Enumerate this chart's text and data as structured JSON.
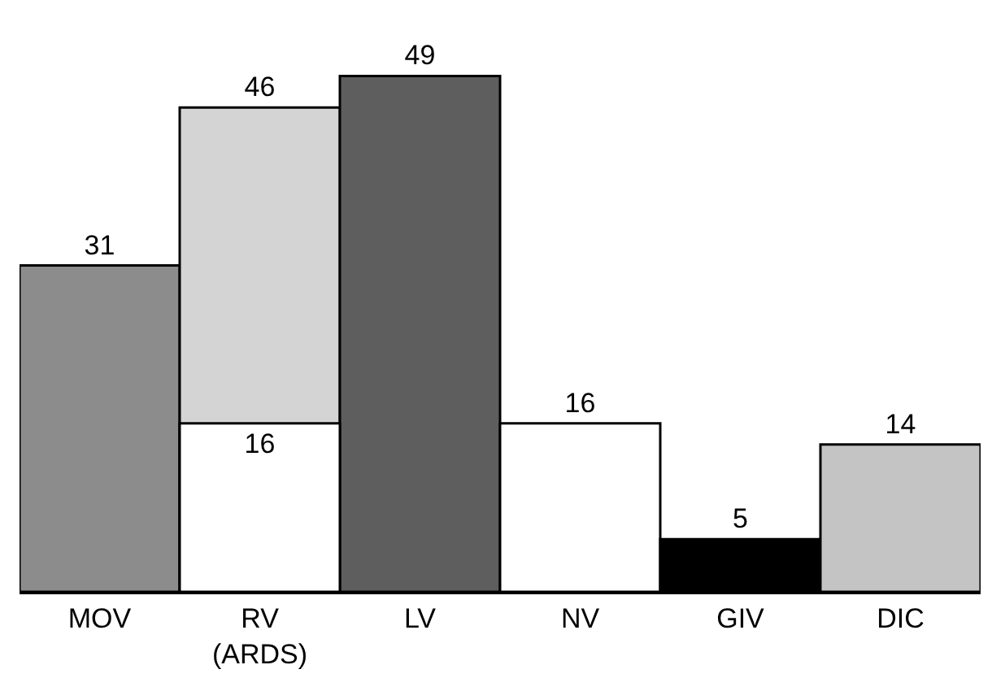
{
  "chart_data": {
    "type": "bar",
    "categories": [
      "MOV",
      "RV\n(ARDS)",
      "LV",
      "NV",
      "GIV",
      "DIC"
    ],
    "series": [
      {
        "colors": [
          "#8c8c8c",
          "#d4d4d4",
          "#5e5e5e",
          "#ffffff",
          "#000000",
          "#c4c4c4"
        ],
        "values": [
          31,
          46,
          49,
          16,
          5,
          14
        ]
      },
      {
        "color": "#ffffff",
        "values": [
          null,
          16,
          null,
          null,
          null,
          null
        ]
      }
    ],
    "data_labels": true,
    "tick_labels": "x",
    "grid": false
  }
}
